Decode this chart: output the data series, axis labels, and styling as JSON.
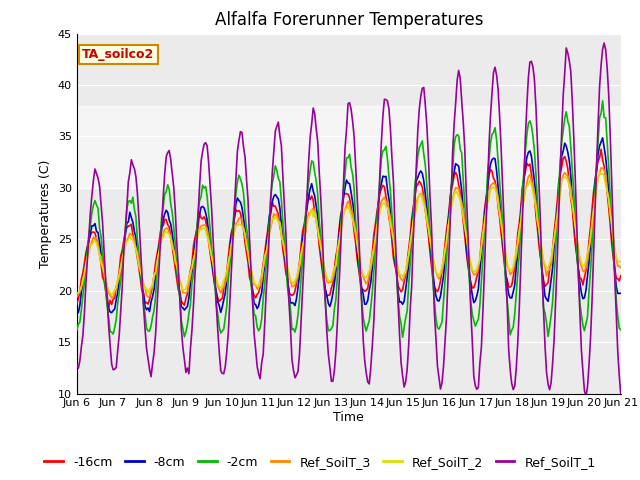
{
  "title": "Alfalfa Forerunner Temperatures",
  "ylabel": "Temperatures (C)",
  "xlabel": "Time",
  "annotation_text": "TA_soilco2",
  "ylim": [
    10,
    45
  ],
  "xtick_labels": [
    "Jun 6",
    "Jun 7",
    "Jun 8",
    "Jun 9",
    "Jun 10",
    "Jun 11",
    "Jun 12",
    "Jun 13",
    "Jun 14",
    "Jun 15",
    "Jun 16",
    "Jun 17",
    "Jun 18",
    "Jun 19",
    "Jun 20",
    "Jun 21"
  ],
  "legend_labels": [
    "-16cm",
    "-8cm",
    "-2cm",
    "Ref_SoilT_3",
    "Ref_SoilT_2",
    "Ref_SoilT_1"
  ],
  "line_colors": [
    "#ff0000",
    "#0000cc",
    "#00bb00",
    "#ff8800",
    "#dddd00",
    "#990099"
  ],
  "bg_shade_band": [
    30,
    38
  ],
  "yticks": [
    10,
    15,
    20,
    25,
    30,
    35,
    40,
    45
  ],
  "n_days": 15,
  "hours_per_day": 24,
  "seed": 42,
  "title_fontsize": 12,
  "label_fontsize": 9,
  "tick_fontsize": 8,
  "legend_fontsize": 9,
  "annot_fontsize": 9
}
